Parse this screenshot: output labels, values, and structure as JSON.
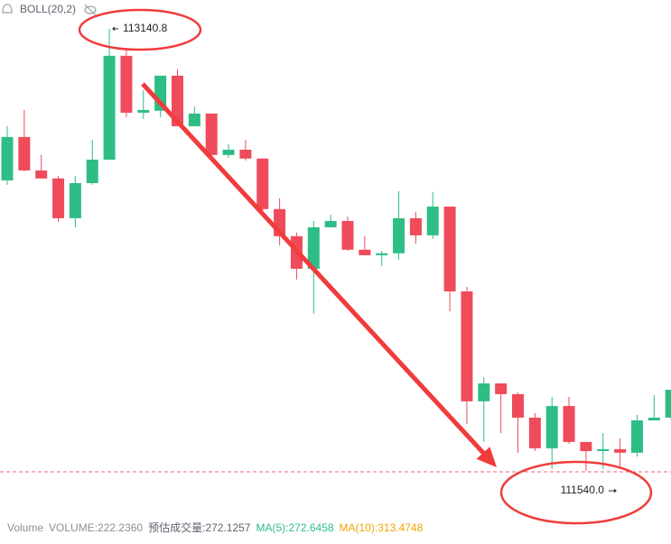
{
  "chart_data": {
    "type": "candlestick",
    "indicator_label": "BOLL(20,2)",
    "up_color": "#2ebd85",
    "down_color": "#ef4b5a",
    "ylim": [
      111416,
      113245
    ],
    "open": [
      112592,
      112749,
      112628,
      112599,
      112455,
      112582,
      112667,
      113043,
      112837,
      112844,
      112971,
      112788,
      112834,
      112684,
      112703,
      112671,
      112488,
      112390,
      112272,
      112422,
      112445,
      112341,
      112321,
      112328,
      112455,
      112393,
      112497,
      112190,
      111792,
      111857,
      111818,
      111733,
      111622,
      111775,
      111645,
      111612,
      111619,
      111606,
      111723,
      111733
    ],
    "high": [
      112788,
      112847,
      112684,
      112608,
      112608,
      112739,
      113140.8,
      113066,
      112919,
      112971,
      112994,
      112860,
      112834,
      112723,
      112739,
      112671,
      112527,
      112403,
      112445,
      112468,
      112461,
      112390,
      112337,
      112553,
      112478,
      112550,
      112497,
      112207,
      111880,
      111857,
      111824,
      111749,
      111808,
      111808,
      111645,
      111677,
      111658,
      111743,
      111815,
      111834
    ],
    "low": [
      112576,
      112625,
      112599,
      112442,
      112422,
      112576,
      112667,
      112821,
      112814,
      112821,
      112788,
      112788,
      112674,
      112674,
      112664,
      112478,
      112357,
      112233,
      112109,
      112422,
      112337,
      112321,
      112282,
      112305,
      112363,
      112380,
      112118,
      111710,
      111645,
      111677,
      111606,
      111612,
      111547,
      111638,
      111540.0,
      111547,
      111547,
      111592,
      111723,
      111723
    ],
    "close": [
      112749,
      112628,
      112599,
      112455,
      112582,
      112667,
      113043,
      112837,
      112847,
      112971,
      112788,
      112834,
      112684,
      112703,
      112671,
      112488,
      112390,
      112272,
      112422,
      112445,
      112341,
      112321,
      112328,
      112455,
      112393,
      112497,
      112190,
      111792,
      111857,
      111818,
      111733,
      111622,
      111775,
      111645,
      111612,
      111619,
      111606,
      111723,
      111733,
      111834
    ],
    "max_label": "113140.8",
    "min_label": "111540.0",
    "reference_line": {
      "value": 111537,
      "color": "#e8636f"
    },
    "volume_legend": [
      {
        "text": "Volume",
        "color": "#8a8f99"
      },
      {
        "text": "VOLUME:222.2360",
        "color": "#8a8f99"
      },
      {
        "text": "预估成交量:272.1257",
        "color": "#5f6470"
      },
      {
        "text": "MA(5):272.6458",
        "color": "#2ebd85"
      },
      {
        "text": "MA(10):313.4748",
        "color": "#f0a500"
      }
    ]
  }
}
